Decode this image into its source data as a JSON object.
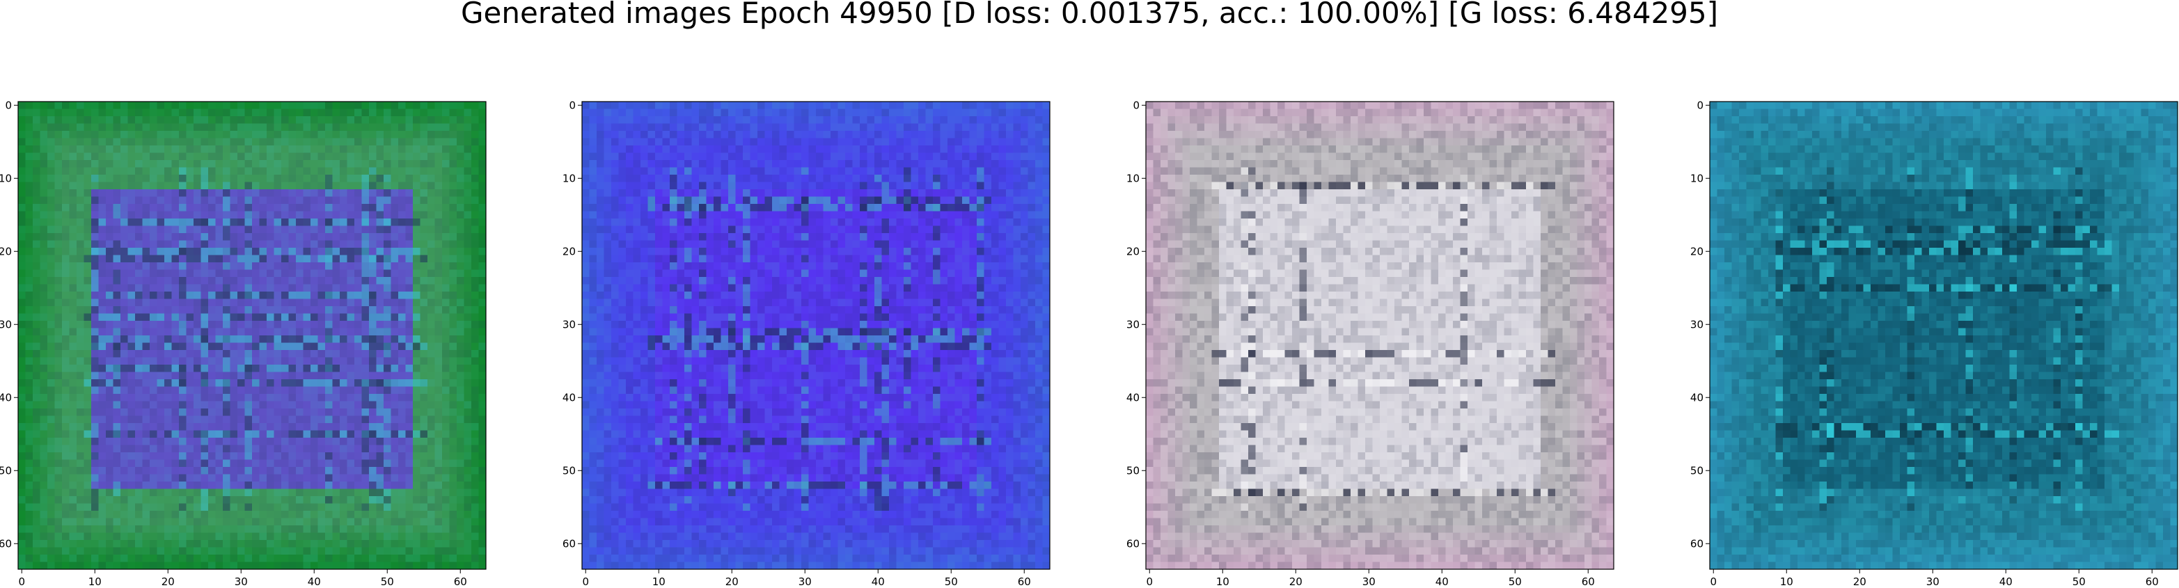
{
  "figure": {
    "title": "Generated images Epoch 49950 [D loss: 0.001375, acc.: 100.00%] [G loss: 6.484295]"
  },
  "axes": {
    "image_size": 64,
    "x_ticks": [
      "0",
      "10",
      "20",
      "30",
      "40",
      "50",
      "60"
    ],
    "y_ticks": [
      "0",
      "10",
      "20",
      "30",
      "40",
      "50",
      "60"
    ]
  },
  "panels": [
    {
      "name": "generated-image-1",
      "colors": {
        "base": "#3d9a5a",
        "border": "#118a2e",
        "inner": "#6a38ea",
        "highlight": "#3cc6d6",
        "dark": "#203a5a"
      }
    },
    {
      "name": "generated-image-2",
      "colors": {
        "base": "#4a40ee",
        "border": "#3f5ae6",
        "inner": "#5a30f2",
        "highlight": "#43b9c6",
        "dark": "#1a3050"
      }
    },
    {
      "name": "generated-image-3",
      "colors": {
        "base": "#b7b4b9",
        "border": "#c9a9c4",
        "inner": "#e2e0ea",
        "highlight": "#ffffff",
        "dark": "#101630"
      }
    },
    {
      "name": "generated-image-4",
      "colors": {
        "base": "#1f7f99",
        "border": "#2a8fb3",
        "inner": "#105f77",
        "highlight": "#38e2ee",
        "dark": "#0a2a3a"
      }
    }
  ]
}
